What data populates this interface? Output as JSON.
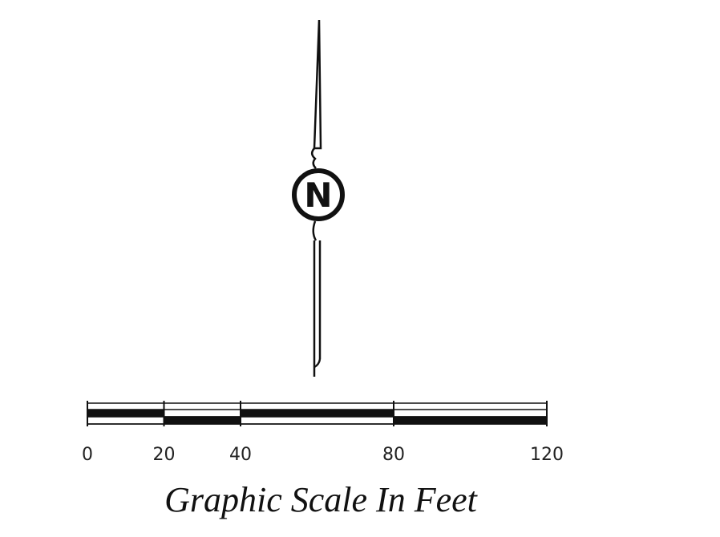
{
  "north_arrow": {
    "label": "N"
  },
  "scale": {
    "ticks": [
      0,
      20,
      40,
      80,
      120
    ],
    "caption": "Graphic Scale In Feet"
  }
}
